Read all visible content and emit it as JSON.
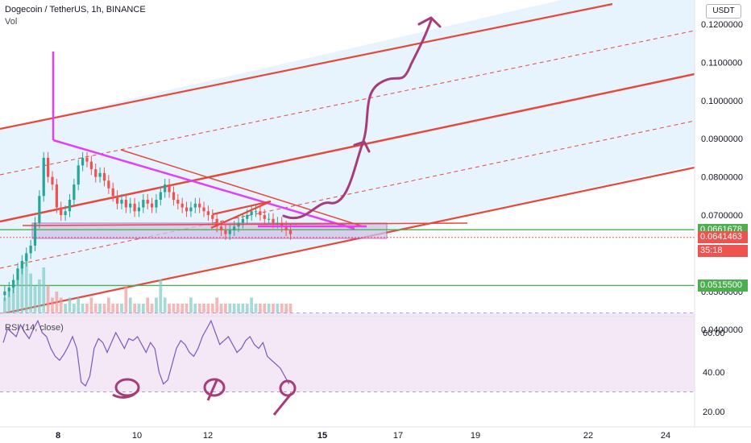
{
  "header": {
    "title": "Dogecoin / TetherUS, 1h, BINANCE",
    "vol_label": "Vol",
    "rsi_label": "RSI (14, close)",
    "currency": "USDT"
  },
  "price_badges": [
    {
      "label": "0.0661678",
      "color": "#4caf50",
      "value": 0.0661678
    },
    {
      "label": "0.0641463",
      "color": "#ef5350",
      "value": 0.0641463
    },
    {
      "label": "35:18",
      "color": "#ef5350",
      "value": 0.0627
    },
    {
      "label": "0.0515500",
      "color": "#4caf50",
      "value": 0.05155
    }
  ],
  "chart_data": {
    "type": "line",
    "title": "Dogecoin / TetherUS, 1h, BINANCE",
    "xlabel": "",
    "ylabel": "",
    "x_ticks": [
      "8",
      "10",
      "12",
      "15",
      "17",
      "19",
      "22",
      "24"
    ],
    "y_ticks": [
      "0.1200000",
      "0.1100000",
      "0.1000000",
      "0.0900000",
      "0.0800000",
      "0.0700000",
      "0.0600000",
      "0.0500000",
      "0.0400000"
    ],
    "ylim": [
      0.036,
      0.126
    ],
    "rsi_ticks": [
      "60.00",
      "40.00",
      "20.00"
    ],
    "rsi_ylim": [
      10,
      75
    ],
    "rsi_levels": [
      70,
      30
    ],
    "horizontal_levels": [
      0.0661678,
      0.05155
    ],
    "last_price": 0.0641463,
    "series": [
      {
        "values": [
          0.05,
          0.051,
          0.053,
          0.056,
          0.058,
          0.06,
          0.062,
          0.068,
          0.075,
          0.085,
          0.08,
          0.078,
          0.072,
          0.07,
          0.071,
          0.074,
          0.078,
          0.083,
          0.085,
          0.084,
          0.082,
          0.08,
          0.081,
          0.079,
          0.077,
          0.075,
          0.073,
          0.074,
          0.072,
          0.073,
          0.071,
          0.072,
          0.074,
          0.073,
          0.072,
          0.074,
          0.076,
          0.078,
          0.076,
          0.074,
          0.073,
          0.072,
          0.071,
          0.072,
          0.073,
          0.072,
          0.071,
          0.07,
          0.069,
          0.067,
          0.066,
          0.065,
          0.066,
          0.067,
          0.068,
          0.069,
          0.07,
          0.071,
          0.071,
          0.07,
          0.069,
          0.069,
          0.068,
          0.068,
          0.067,
          0.066,
          0.065
        ]
      }
    ],
    "volume": [
      0.3,
      0.4,
      0.5,
      0.6,
      0.9,
      1.0,
      0.7,
      0.5,
      0.6,
      0.8,
      0.5,
      0.3,
      0.4,
      0.3,
      0.2,
      0.3,
      0.2,
      0.3,
      0.2,
      0.2,
      0.3,
      0.2,
      0.2,
      0.2,
      0.3,
      0.2,
      0.2,
      0.2,
      0.5,
      0.3,
      0.2,
      0.2,
      0.2,
      0.3,
      0.2,
      0.3,
      0.6,
      0.3,
      0.2,
      0.2,
      0.2,
      0.2,
      0.2,
      0.3,
      0.2,
      0.2,
      0.2,
      0.2,
      0.2,
      0.3,
      0.2,
      0.2,
      0.2,
      0.2,
      0.2,
      0.2,
      0.2,
      0.3,
      0.2,
      0.2,
      0.2,
      0.2,
      0.2,
      0.2,
      0.2,
      0.2,
      0.2
    ],
    "rsi": [
      55,
      62,
      60,
      58,
      64,
      60,
      57,
      62,
      66,
      60,
      58,
      52,
      48,
      46,
      49,
      53,
      58,
      52,
      35,
      33,
      38,
      52,
      57,
      55,
      50,
      55,
      60,
      56,
      52,
      57,
      56,
      58,
      54,
      50,
      55,
      52,
      40,
      34,
      36,
      44,
      52,
      56,
      54,
      50,
      48,
      52,
      58,
      62,
      66,
      60,
      54,
      56,
      58,
      54,
      50,
      52,
      56,
      58,
      54,
      52,
      55,
      48,
      46,
      44,
      42,
      38,
      34
    ]
  },
  "colors": {
    "channel_red": "#e5493b",
    "channel_fill": "#e3f2fd",
    "rsi_fill": "#f3e5f5",
    "support_green": "#4caf50",
    "magenta": "#e040fb",
    "drawing_purple": "#a63d7a",
    "candle_up": "#26a69a",
    "candle_down": "#ef5350"
  }
}
